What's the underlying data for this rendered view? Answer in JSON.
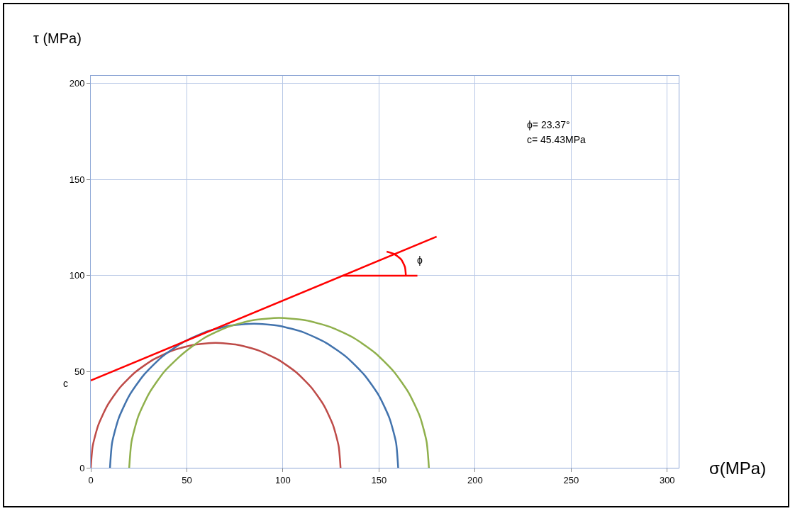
{
  "chart_data": {
    "type": "line",
    "xlabel": "σ(MPa)",
    "ylabel": "τ (MPa)",
    "xlim": [
      0,
      306
    ],
    "xticks": [
      0,
      50,
      100,
      150,
      200,
      250,
      300
    ],
    "ylim": [
      0,
      204
    ],
    "yticks": [
      0,
      50,
      100,
      150,
      200
    ],
    "grid": true,
    "marker": "none",
    "line_style": "solid",
    "series": [
      {
        "color": "#be4b48",
        "x": [
          130,
          129.0,
          126.1,
          121.3,
          114.8,
          106.8,
          97.5,
          87.2,
          76.3,
          65,
          53.7,
          42.8,
          32.5,
          23.2,
          15.2,
          8.7,
          3.9,
          1.0,
          0
        ],
        "values": [
          0,
          11.3,
          22.2,
          32.5,
          41.8,
          49.8,
          56.3,
          61.1,
          64.0,
          65,
          64.0,
          61.1,
          56.3,
          49.8,
          41.8,
          32.5,
          22.2,
          11.3,
          0
        ]
      },
      {
        "color": "#4273ad",
        "x": [
          160,
          158.9,
          155.5,
          150,
          142.5,
          133.2,
          122.5,
          110.7,
          98,
          85,
          72,
          59.3,
          47.5,
          36.8,
          27.5,
          20,
          14.5,
          11.1,
          10
        ],
        "values": [
          0,
          13,
          25.7,
          37.5,
          48.2,
          57.5,
          65,
          70.5,
          73.9,
          75,
          73.9,
          70.5,
          65,
          57.5,
          48.2,
          37.5,
          25.7,
          13,
          0
        ]
      },
      {
        "color": "#8fb04c",
        "x": [
          176,
          174.8,
          171.3,
          165.5,
          157.7,
          148.1,
          137,
          124.7,
          111.5,
          98,
          84.5,
          71.3,
          59,
          48.3,
          38.3,
          30.5,
          24.7,
          21.2,
          20
        ],
        "values": [
          0,
          13.5,
          26.7,
          39,
          50.1,
          59.7,
          67.5,
          73.3,
          76.8,
          78,
          76.8,
          73.3,
          67.5,
          59.7,
          50.1,
          39,
          26.7,
          13.5,
          0
        ]
      },
      {
        "color": "#ff0000",
        "x": [
          0,
          180
        ],
        "values": [
          45.4,
          120.3
        ]
      },
      {
        "color": "#ff0000",
        "x": [
          131,
          170
        ],
        "values": [
          100,
          100
        ]
      },
      {
        "color": "#ff0000",
        "x": [
          164,
          163.5,
          161.5,
          158,
          154
        ],
        "values": [
          100,
          104.5,
          108.5,
          111.2,
          112.5
        ]
      }
    ],
    "annotations": [
      "ϕ= 23.37°",
      "c= 45.43MPa",
      "ϕ",
      "c"
    ]
  }
}
